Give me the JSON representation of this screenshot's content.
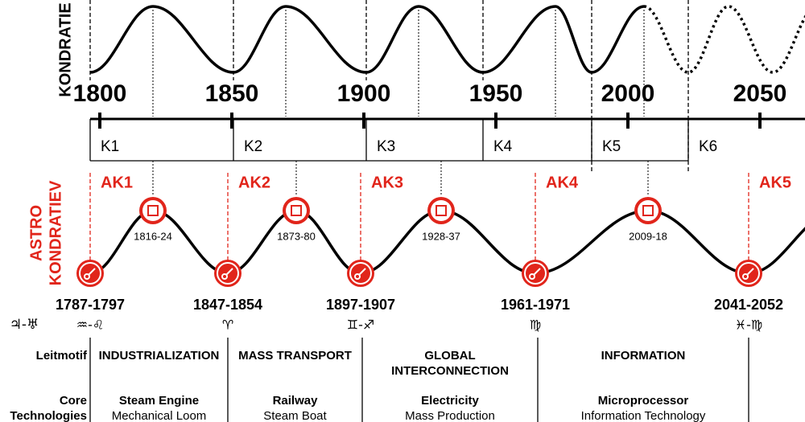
{
  "top_cycle": {
    "label": "KONDRATIE",
    "years": [
      1800,
      1850,
      1900,
      1950,
      2000,
      2050
    ],
    "cycles": [
      "K1",
      "K2",
      "K3",
      "K4",
      "K5",
      "K6"
    ]
  },
  "astro_cycle": {
    "label": [
      "ASTRO",
      "KONDRATIEV"
    ],
    "planets": "♃-♅",
    "cycles": [
      "AK1",
      "AK2",
      "AK3",
      "AK4",
      "AK5"
    ],
    "peaks": [
      "1816-24",
      "1873-80",
      "1928-37",
      "2009-18"
    ],
    "troughs": [
      "1787-1797",
      "1847-1854",
      "1897-1907",
      "1961-1971",
      "2041-2052"
    ],
    "signs": [
      "♒-♌",
      "♈",
      "♊-♐",
      "♍",
      "♓-♍"
    ]
  },
  "table": {
    "rows": [
      {
        "label": [
          "Leitmotif"
        ],
        "cells": [
          [
            "INDUSTRIALIZATION"
          ],
          [
            "MASS TRANSPORT"
          ],
          [
            "GLOBAL",
            "INTERCONNECTION"
          ],
          [
            "INFORMATION"
          ]
        ]
      },
      {
        "label": [
          "Core",
          "Technologies"
        ],
        "cells": [
          [
            "Steam Engine",
            "Mechanical Loom"
          ],
          [
            "Railway",
            "Steam Boat"
          ],
          [
            "Electricity",
            "Mass Production"
          ],
          [
            "Microprocessor",
            "Information Technology"
          ]
        ]
      }
    ]
  }
}
